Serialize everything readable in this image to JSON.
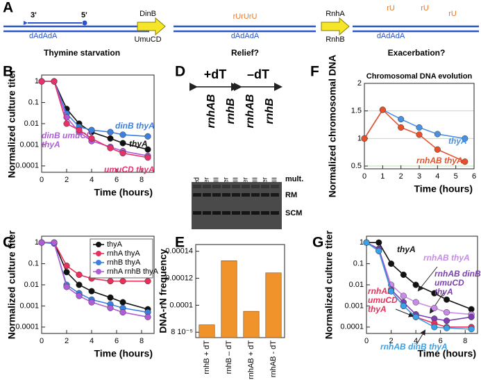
{
  "diagram": {
    "panel": "A",
    "strand_ends": [
      "3'",
      "5'"
    ],
    "template": [
      "dAdAdA",
      "dAdAdA",
      "dAdAdA"
    ],
    "ribos_block": "rUrUrU",
    "ribos": [
      "rU",
      "rU",
      "rU"
    ],
    "enzymes_1": [
      "DinB",
      "UmuCD"
    ],
    "enzymes_2": [
      "RnhA",
      "RnhB"
    ],
    "captions": [
      "Thymine starvation",
      "Relief?",
      "Exacerbation?"
    ]
  },
  "gel": {
    "panel": "D",
    "conditions": [
      "+dT",
      "–dT"
    ],
    "strains": [
      "rnhAB",
      "rnhB",
      "rnhAB",
      "rnhB"
    ],
    "lanes": [
      "untreated",
      "buffer",
      "RNase HII",
      "buffer",
      "RNase HII",
      "buffer",
      "RNase HII",
      "buffer",
      "RNase HII"
    ],
    "bands": [
      "mult.",
      "RM",
      "SCM"
    ]
  },
  "chart_data": [
    {
      "panel": "B",
      "type": "line",
      "yscale": "log",
      "xlabel": "Time (hours)",
      "ylabel": "Normalized culture titer",
      "x": [
        0,
        1,
        2,
        3,
        4,
        5.5,
        6.5,
        8.5
      ],
      "xlim": [
        0,
        9
      ],
      "xticks": [
        0,
        2,
        4,
        6,
        8
      ],
      "ylim": [
        5e-05,
        2
      ],
      "yticks": [
        1,
        0.1,
        0.01,
        0.001,
        0.0001
      ],
      "series": [
        {
          "name": "thyA",
          "color": "#111111",
          "values": [
            1,
            1,
            0.05,
            0.01,
            0.004,
            0.002,
            0.0012,
            0.0006
          ]
        },
        {
          "name": "dinB thyA",
          "color": "#3b7fe0",
          "values": [
            1,
            1,
            0.03,
            0.007,
            0.005,
            0.004,
            0.003,
            0.0025
          ]
        },
        {
          "name": "dinB umuCD thyA",
          "color": "#b05cd8",
          "values": [
            1,
            1,
            0.02,
            0.004,
            0.0015,
            0.0008,
            0.0005,
            0.0003
          ]
        },
        {
          "name": "umuCD thyA",
          "color": "#e8306a",
          "values": [
            1,
            1,
            0.01,
            0.005,
            0.002,
            0.0007,
            0.0004,
            0.00025
          ]
        }
      ]
    },
    {
      "panel": "C",
      "type": "line",
      "yscale": "log",
      "xlabel": "Time (hours)",
      "ylabel": "Normalized culture titer",
      "legend": "upper right",
      "x": [
        0,
        1,
        2,
        3,
        4,
        5.5,
        6.5,
        8.5
      ],
      "xlim": [
        0,
        9
      ],
      "xticks": [
        0,
        2,
        4,
        6,
        8
      ],
      "ylim": [
        5e-05,
        2
      ],
      "yticks": [
        1,
        0.1,
        0.01,
        0.001,
        0.0001
      ],
      "series": [
        {
          "name": "thyA",
          "color": "#111111",
          "values": [
            1,
            1,
            0.04,
            0.01,
            0.005,
            0.0025,
            0.0015,
            0.0007
          ]
        },
        {
          "name": "rnhA thyA",
          "color": "#e8305a",
          "values": [
            1,
            1,
            0.08,
            0.03,
            0.02,
            0.015,
            0.015,
            0.015
          ]
        },
        {
          "name": "rnhB thyA",
          "color": "#3b7fe0",
          "values": [
            1,
            0.9,
            0.01,
            0.004,
            0.002,
            0.0012,
            0.0008,
            0.0005
          ]
        },
        {
          "name": "rnhA rnhB thyA",
          "color": "#b05cd8",
          "values": [
            1,
            1,
            0.008,
            0.003,
            0.0015,
            0.0008,
            0.0005,
            0.0003
          ]
        }
      ]
    },
    {
      "panel": "E",
      "type": "bar",
      "ylabel": "DNA-rN frequency",
      "color": "#f0932b",
      "categories": [
        "rnhB + dT",
        "rnhB – dT",
        "rnhAB + dT",
        "rnhAB - dT"
      ],
      "values": [
        8.55e-05,
        0.000133,
        9.55e-05,
        0.000124
      ],
      "ylim": [
        7.6e-05,
        0.000145
      ],
      "yticks": [
        {
          "value": 8e-05,
          "label": "8 10⁻⁵"
        },
        0.0001,
        0.00012,
        0.00014
      ]
    },
    {
      "panel": "F",
      "type": "line",
      "title": "Chromosomal DNA evolution",
      "xlabel": "Time (hours)",
      "ylabel": "Normalized chromosomal DNA",
      "grid": true,
      "grid_color": "#b8e0b0",
      "x": [
        0,
        1,
        2,
        3,
        4,
        5.5
      ],
      "xlim": [
        0,
        6
      ],
      "xticks": [
        0,
        1,
        2,
        3,
        4,
        5,
        6
      ],
      "ylim": [
        0.45,
        2
      ],
      "yticks": [
        0.5,
        1,
        1.5,
        2
      ],
      "series": [
        {
          "name": "thyA",
          "color": "#4a90e2",
          "values": [
            1,
            1.52,
            1.35,
            1.2,
            1.08,
            1.0
          ]
        },
        {
          "name": "rnhAB thyA",
          "color": "#e8502a",
          "values": [
            1,
            1.52,
            1.2,
            1.07,
            0.8,
            0.58
          ]
        }
      ]
    },
    {
      "panel": "G",
      "type": "line",
      "yscale": "log",
      "xlabel": "Time (hours)",
      "ylabel": "Normalized culture titer",
      "x": [
        0,
        1,
        2,
        3,
        4,
        5.5,
        6.5,
        8.5
      ],
      "xlim": [
        0,
        9
      ],
      "xticks": [
        0,
        2,
        4,
        6,
        8
      ],
      "ylim": [
        5e-05,
        2
      ],
      "yticks": [
        1,
        0.1,
        0.01,
        0.001,
        0.0001
      ],
      "series": [
        {
          "name": "thyA",
          "color": "#111111",
          "values": [
            1,
            1,
            0.1,
            0.03,
            0.01,
            0.004,
            0.002,
            0.0007
          ]
        },
        {
          "name": "rnhAB thyA",
          "color": "#c78be8",
          "values": [
            1,
            0.5,
            0.01,
            0.003,
            0.0015,
            0.0008,
            0.0005,
            0.0004
          ]
        },
        {
          "name": "rnhAB dinB umuCD thyA",
          "color": "#7b3fb0",
          "values": [
            1,
            0.5,
            0.006,
            0.0015,
            0.0004,
            0.00025,
            0.0002,
            0.0003
          ]
        },
        {
          "name": "rnhAB umuCD thyA",
          "color": "#e8305a",
          "values": [
            1,
            0.4,
            0.005,
            0.001,
            0.0003,
            0.00015,
            0.0001,
            0.0001
          ]
        },
        {
          "name": "rnhAB dinB thyA",
          "color": "#3ba0e8",
          "values": [
            1,
            0.4,
            0.005,
            0.001,
            0.0003,
            0.0001,
            9e-05,
            8e-05
          ]
        }
      ]
    }
  ]
}
